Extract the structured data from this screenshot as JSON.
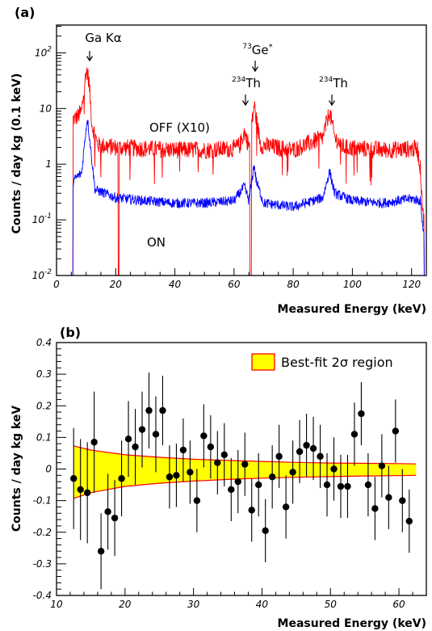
{
  "chart_data": [
    {
      "panel_label": "(a)",
      "type": "line",
      "xlabel": "Measured Energy (keV)",
      "ylabel": "Counts / day kg (0.1 keV)",
      "xlim": [
        0,
        125
      ],
      "ylim": [
        0.01,
        316
      ],
      "yscale": "log",
      "xticks": [
        0,
        20,
        40,
        60,
        80,
        100,
        120
      ],
      "xtick_labels": [
        "0",
        "20",
        "40",
        "60",
        "80",
        "100",
        "120"
      ],
      "yticks": [
        0.01,
        0.1,
        1,
        10,
        100
      ],
      "ytick_labels": [
        {
          "base": "10",
          "exp": "-2"
        },
        {
          "base": "10",
          "exp": "-1"
        },
        {
          "base": "1",
          "exp": ""
        },
        {
          "base": "10",
          "exp": ""
        },
        {
          "base": "10",
          "exp": "2"
        }
      ],
      "series": [
        {
          "name": "OFF (X10)",
          "color": "#ff0000",
          "points": [
            [
              5.5,
              0.01
            ],
            [
              5.7,
              6.5
            ],
            [
              7,
              7.0
            ],
            [
              8.5,
              9.0
            ],
            [
              9.5,
              28
            ],
            [
              10.2,
              52
            ],
            [
              11,
              30
            ],
            [
              12,
              5.0
            ],
            [
              14,
              2.2
            ],
            [
              20,
              2.0
            ],
            [
              20.6,
              2.0
            ],
            [
              21,
              0.01
            ],
            [
              21.4,
              2.0
            ],
            [
              30,
              1.9
            ],
            [
              40,
              1.8
            ],
            [
              50,
              1.8
            ],
            [
              60,
              1.9
            ],
            [
              62,
              2.2
            ],
            [
              63.5,
              3.8
            ],
            [
              64.5,
              2.6
            ],
            [
              65,
              2.2
            ],
            [
              65.6,
              0.01
            ],
            [
              66.2,
              6.0
            ],
            [
              66.8,
              12
            ],
            [
              67.5,
              6.5
            ],
            [
              69,
              2.2
            ],
            [
              80,
              1.8
            ],
            [
              90,
              3.0
            ],
            [
              92.3,
              9.0
            ],
            [
              94,
              3.0
            ],
            [
              97,
              2.0
            ],
            [
              110,
              1.8
            ],
            [
              122,
              1.9
            ],
            [
              123,
              0.8
            ],
            [
              124,
              0.1
            ],
            [
              124.5,
              0.01
            ]
          ]
        },
        {
          "name": "ON",
          "color": "#0000ff",
          "points": [
            [
              5.5,
              0.01
            ],
            [
              5.7,
              0.5
            ],
            [
              7,
              0.6
            ],
            [
              8.5,
              0.7
            ],
            [
              9.5,
              2.5
            ],
            [
              10.4,
              7.0
            ],
            [
              11.5,
              2.0
            ],
            [
              13,
              0.35
            ],
            [
              20,
              0.25
            ],
            [
              30,
              0.22
            ],
            [
              40,
              0.2
            ],
            [
              50,
              0.2
            ],
            [
              60,
              0.22
            ],
            [
              63.5,
              0.4
            ],
            [
              65,
              0.22
            ],
            [
              66,
              0.5
            ],
            [
              66.8,
              1.0
            ],
            [
              67.5,
              0.5
            ],
            [
              70,
              0.2
            ],
            [
              80,
              0.17
            ],
            [
              90,
              0.25
            ],
            [
              92.3,
              0.75
            ],
            [
              94,
              0.3
            ],
            [
              100,
              0.22
            ],
            [
              110,
              0.2
            ],
            [
              120,
              0.24
            ],
            [
              123,
              0.22
            ],
            [
              124,
              0.06
            ],
            [
              124.5,
              0.01
            ]
          ]
        }
      ],
      "annotations": {
        "ga": {
          "text": "Ga Kα",
          "x": 10.2
        },
        "ge": {
          "base": "Ge",
          "mass": "73",
          "star": "*",
          "x": 66.5
        },
        "th1": {
          "base": "Th",
          "mass": "234",
          "x": 63.5
        },
        "th2": {
          "base": "Th",
          "mass": "234",
          "x": 92.3
        },
        "off_label": "OFF (X10)",
        "on_label": "ON"
      }
    },
    {
      "panel_label": "(b)",
      "type": "scatter",
      "xlabel": "Measured Energy (keV)",
      "ylabel": "Counts / day kg keV",
      "xlim": [
        10,
        64
      ],
      "ylim": [
        -0.4,
        0.4
      ],
      "xticks": [
        10,
        20,
        30,
        40,
        50,
        60
      ],
      "xtick_labels": [
        "10",
        "20",
        "30",
        "40",
        "50",
        "60"
      ],
      "yticks": [
        -0.4,
        -0.3,
        -0.2,
        -0.1,
        0,
        0.1,
        0.2,
        0.3,
        0.4
      ],
      "ytick_labels": [
        "-0.4",
        "-0.3",
        "-0.2",
        "-0.1",
        "0",
        "0.1",
        "0.2",
        "0.3",
        "0.4"
      ],
      "legend": {
        "label": "Best-fit 2σ region",
        "position": "top-right"
      },
      "band": {
        "x": [
          12.5,
          15,
          20,
          25,
          30,
          35,
          40,
          45,
          50,
          55,
          60,
          62.5
        ],
        "upper": [
          0.073,
          0.06,
          0.045,
          0.037,
          0.031,
          0.027,
          0.024,
          0.021,
          0.019,
          0.018,
          0.017,
          0.016
        ],
        "lower": [
          -0.093,
          -0.075,
          -0.055,
          -0.045,
          -0.038,
          -0.033,
          -0.029,
          -0.026,
          -0.024,
          -0.022,
          -0.021,
          -0.02
        ]
      },
      "points": [
        {
          "x": 12.5,
          "y": -0.03,
          "err": 0.16
        },
        {
          "x": 13.5,
          "y": -0.065,
          "err": 0.16
        },
        {
          "x": 14.5,
          "y": -0.075,
          "err": 0.16
        },
        {
          "x": 15.5,
          "y": 0.085,
          "err": 0.16
        },
        {
          "x": 16.5,
          "y": -0.26,
          "err": 0.12
        },
        {
          "x": 17.5,
          "y": -0.135,
          "err": 0.12
        },
        {
          "x": 18.5,
          "y": -0.155,
          "err": 0.12
        },
        {
          "x": 19.5,
          "y": -0.03,
          "err": 0.12
        },
        {
          "x": 20.5,
          "y": 0.095,
          "err": 0.12
        },
        {
          "x": 21.5,
          "y": 0.07,
          "err": 0.12
        },
        {
          "x": 22.5,
          "y": 0.125,
          "err": 0.12
        },
        {
          "x": 23.5,
          "y": 0.185,
          "err": 0.12
        },
        {
          "x": 24.5,
          "y": 0.11,
          "err": 0.12
        },
        {
          "x": 25.5,
          "y": 0.185,
          "err": 0.11
        },
        {
          "x": 26.5,
          "y": -0.025,
          "err": 0.1
        },
        {
          "x": 27.5,
          "y": -0.02,
          "err": 0.1
        },
        {
          "x": 28.5,
          "y": 0.06,
          "err": 0.1
        },
        {
          "x": 29.5,
          "y": -0.01,
          "err": 0.1
        },
        {
          "x": 30.5,
          "y": -0.1,
          "err": 0.1
        },
        {
          "x": 31.5,
          "y": 0.105,
          "err": 0.1
        },
        {
          "x": 32.5,
          "y": 0.07,
          "err": 0.1
        },
        {
          "x": 33.5,
          "y": 0.02,
          "err": 0.1
        },
        {
          "x": 34.5,
          "y": 0.045,
          "err": 0.1
        },
        {
          "x": 35.5,
          "y": -0.065,
          "err": 0.1
        },
        {
          "x": 36.5,
          "y": -0.04,
          "err": 0.1
        },
        {
          "x": 37.5,
          "y": 0.015,
          "err": 0.1
        },
        {
          "x": 38.5,
          "y": -0.13,
          "err": 0.1
        },
        {
          "x": 39.5,
          "y": -0.05,
          "err": 0.1
        },
        {
          "x": 40.5,
          "y": -0.195,
          "err": 0.1
        },
        {
          "x": 41.5,
          "y": -0.025,
          "err": 0.1
        },
        {
          "x": 42.5,
          "y": 0.04,
          "err": 0.1
        },
        {
          "x": 43.5,
          "y": -0.12,
          "err": 0.1
        },
        {
          "x": 44.5,
          "y": -0.01,
          "err": 0.1
        },
        {
          "x": 45.5,
          "y": 0.055,
          "err": 0.1
        },
        {
          "x": 46.5,
          "y": 0.075,
          "err": 0.1
        },
        {
          "x": 47.5,
          "y": 0.065,
          "err": 0.1
        },
        {
          "x": 48.5,
          "y": 0.04,
          "err": 0.1
        },
        {
          "x": 49.5,
          "y": -0.05,
          "err": 0.1
        },
        {
          "x": 50.5,
          "y": 0.0,
          "err": 0.1
        },
        {
          "x": 51.5,
          "y": -0.055,
          "err": 0.1
        },
        {
          "x": 52.5,
          "y": -0.055,
          "err": 0.1
        },
        {
          "x": 53.5,
          "y": 0.11,
          "err": 0.1
        },
        {
          "x": 54.5,
          "y": 0.175,
          "err": 0.1
        },
        {
          "x": 55.5,
          "y": -0.05,
          "err": 0.1
        },
        {
          "x": 56.5,
          "y": -0.125,
          "err": 0.1
        },
        {
          "x": 57.5,
          "y": 0.01,
          "err": 0.1
        },
        {
          "x": 58.5,
          "y": -0.09,
          "err": 0.1
        },
        {
          "x": 59.5,
          "y": 0.12,
          "err": 0.1
        },
        {
          "x": 60.5,
          "y": -0.1,
          "err": 0.1
        },
        {
          "x": 61.5,
          "y": -0.165,
          "err": 0.1
        }
      ]
    }
  ]
}
